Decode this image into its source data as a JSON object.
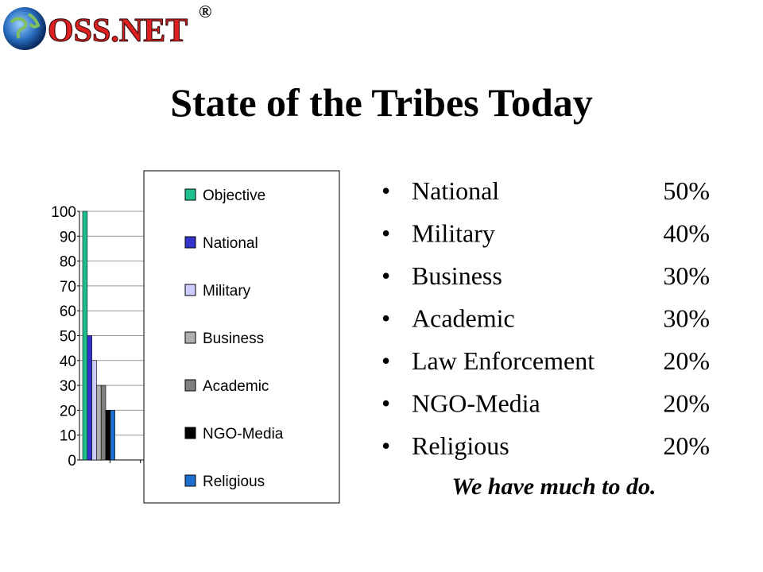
{
  "logo": "OSS.NET",
  "registered": "®",
  "title": "State of the Tribes Today",
  "bullets": [
    {
      "label": "National",
      "value": "50%"
    },
    {
      "label": "Military",
      "value": "40%"
    },
    {
      "label": "Business",
      "value": "30%"
    },
    {
      "label": "Academic",
      "value": "30%"
    },
    {
      "label": "Law Enforcement",
      "value": "20%"
    },
    {
      "label": "NGO-Media",
      "value": "20%"
    },
    {
      "label": "Religious",
      "value": "20%"
    }
  ],
  "note": "We have much to do.",
  "chart_data": {
    "type": "bar",
    "categories": [
      null,
      null,
      null
    ],
    "series": [
      {
        "name": "Objective",
        "color": "#1fbf8f",
        "values": [
          100,
          0,
          0
        ]
      },
      {
        "name": "National",
        "color": "#3333cc",
        "values": [
          50,
          0,
          0
        ]
      },
      {
        "name": "Military",
        "color": "#ccccff",
        "values": [
          40,
          0,
          0
        ]
      },
      {
        "name": "Business",
        "color": "#b0b0b0",
        "values": [
          30,
          0,
          0
        ]
      },
      {
        "name": "Academic",
        "color": "#808080",
        "values": [
          30,
          0,
          0
        ]
      },
      {
        "name": "NGO-Media",
        "color": "#000000",
        "values": [
          20,
          0,
          0
        ]
      },
      {
        "name": "Religious",
        "color": "#1f6fcf",
        "values": [
          20,
          0,
          0
        ]
      }
    ],
    "ylim": [
      0,
      100
    ],
    "yticks": [
      0,
      10,
      20,
      30,
      40,
      50,
      60,
      70,
      80,
      90,
      100
    ],
    "grid": true,
    "legend": "right"
  }
}
